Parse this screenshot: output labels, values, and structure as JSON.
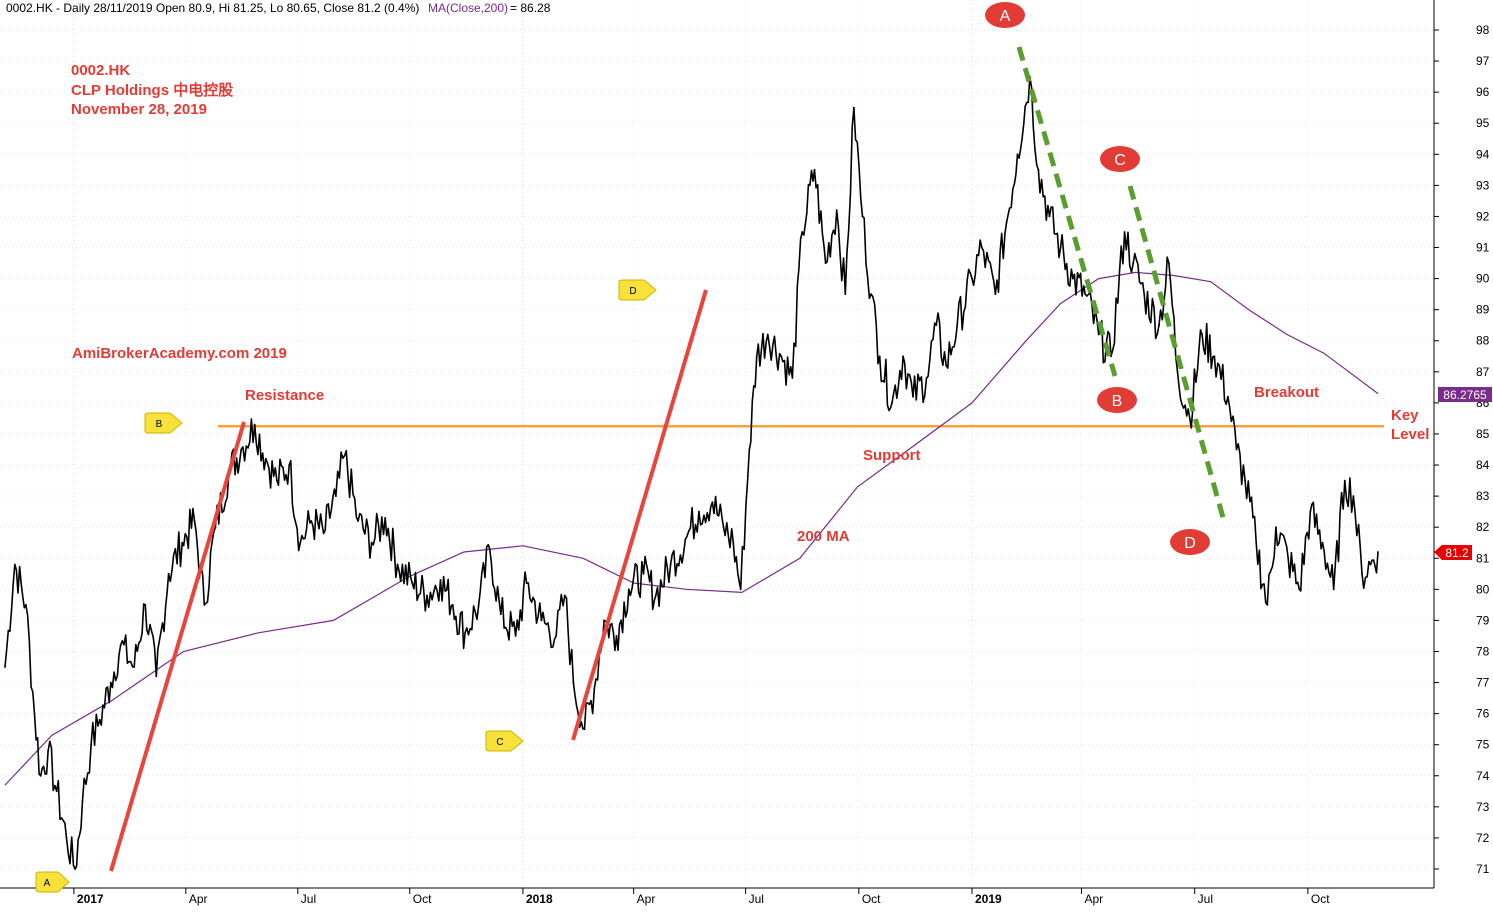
{
  "header": {
    "info": "0002.HK - Daily 28/11/2019 Open 80.9, Hi 81.25, Lo 80.65, Close 81.2 (0.4%)",
    "ma_label": "MA(Close,200)",
    "ma_value": " = 86.28"
  },
  "title_block": {
    "line1": "0002.HK",
    "line2": "CLP Holdings  中电控股",
    "line3": "November 28, 2019"
  },
  "watermark": "AmiBrokerAcademy.com   2019",
  "annotations": {
    "resistance": "Resistance",
    "support": "Support",
    "ma200": "200 MA",
    "breakout": "Breakout",
    "key": "Key",
    "level": "Level"
  },
  "markers": {
    "small_A": "A",
    "small_B": "B",
    "small_C": "C",
    "small_D": "D",
    "big_A": "A",
    "big_B": "B",
    "big_C": "C",
    "big_D": "D"
  },
  "price_tags": {
    "ma": "86.2765",
    "close": "81.2"
  },
  "colors": {
    "background": "#ffffff",
    "price": "#000000",
    "ma": "#7a2b8c",
    "key_level": "#f5a33a",
    "trend_up": "#e8453c",
    "trend_down": "#5a9e2f",
    "label_red": "#e23c36",
    "marker_yellow": "#f7e13a",
    "close_tag": "#e80000",
    "ma_tag": "#7a2b8c"
  },
  "chart_data": {
    "type": "line",
    "title": "0002.HK - Daily 28/11/2019 Open 80.9, Hi 81.25, Lo 80.65, Close 81.2 (0.4%)",
    "ylim": [
      70.5,
      98.5
    ],
    "y_ticks": [
      71,
      72,
      73,
      74,
      75,
      76,
      77,
      78,
      79,
      80,
      81,
      82,
      83,
      84,
      85,
      86,
      87,
      88,
      89,
      90,
      91,
      92,
      93,
      94,
      95,
      96,
      97,
      98
    ],
    "x_ticks": [
      "2017",
      "Apr",
      "Jul",
      "Oct",
      "2018",
      "Apr",
      "Jul",
      "Oct",
      "2019",
      "Apr",
      "Jul",
      "Oct"
    ],
    "x_start": "2016-11-07",
    "x_end": "2019-11-28",
    "key_level": 85.25,
    "series": [
      {
        "name": "0002.HK",
        "points": [
          [
            "2016-11-07",
            77.5
          ],
          [
            "2016-11-15",
            80.8
          ],
          [
            "2016-11-24",
            79.5
          ],
          [
            "2016-12-01",
            76.0
          ],
          [
            "2016-12-06",
            74.0
          ],
          [
            "2016-12-12",
            74.8
          ],
          [
            "2016-12-19",
            73.5
          ],
          [
            "2016-12-27",
            72.0
          ],
          [
            "2017-01-03",
            71.0
          ],
          [
            "2017-01-09",
            73.2
          ],
          [
            "2017-01-16",
            75.0
          ],
          [
            "2017-01-23",
            75.8
          ],
          [
            "2017-02-01",
            77.0
          ],
          [
            "2017-02-09",
            78.2
          ],
          [
            "2017-02-20",
            77.5
          ],
          [
            "2017-03-01",
            79.5
          ],
          [
            "2017-03-10",
            77.2
          ],
          [
            "2017-03-20",
            80.5
          ],
          [
            "2017-03-31",
            81.5
          ],
          [
            "2017-04-10",
            82.2
          ],
          [
            "2017-04-18",
            79.5
          ],
          [
            "2017-04-27",
            82.0
          ],
          [
            "2017-05-08",
            83.8
          ],
          [
            "2017-05-18",
            84.5
          ],
          [
            "2017-05-29",
            85.3
          ],
          [
            "2017-06-07",
            84.2
          ],
          [
            "2017-06-16",
            83.5
          ],
          [
            "2017-06-26",
            84.0
          ],
          [
            "2017-07-05",
            81.5
          ],
          [
            "2017-07-14",
            82.2
          ],
          [
            "2017-07-24",
            81.8
          ],
          [
            "2017-08-03",
            83.0
          ],
          [
            "2017-08-10",
            84.3
          ],
          [
            "2017-08-21",
            82.2
          ],
          [
            "2017-09-01",
            81.5
          ],
          [
            "2017-09-12",
            82.3
          ],
          [
            "2017-09-22",
            80.8
          ],
          [
            "2017-10-04",
            80.2
          ],
          [
            "2017-10-16",
            79.8
          ],
          [
            "2017-10-27",
            80.3
          ],
          [
            "2017-11-06",
            79.5
          ],
          [
            "2017-11-16",
            78.6
          ],
          [
            "2017-11-27",
            79.5
          ],
          [
            "2017-12-06",
            81.3
          ],
          [
            "2017-12-15",
            79.2
          ],
          [
            "2017-12-27",
            78.5
          ],
          [
            "2018-01-05",
            80.2
          ],
          [
            "2018-01-17",
            79.0
          ],
          [
            "2018-01-29",
            78.5
          ],
          [
            "2018-02-05",
            79.8
          ],
          [
            "2018-02-12",
            77.0
          ],
          [
            "2018-02-21",
            75.5
          ],
          [
            "2018-03-01",
            76.8
          ],
          [
            "2018-03-09",
            79.0
          ],
          [
            "2018-03-19",
            78.5
          ],
          [
            "2018-03-29",
            80.0
          ],
          [
            "2018-04-10",
            80.5
          ],
          [
            "2018-04-20",
            79.8
          ],
          [
            "2018-05-02",
            80.8
          ],
          [
            "2018-05-14",
            81.6
          ],
          [
            "2018-05-25",
            82.5
          ],
          [
            "2018-06-05",
            82.8
          ],
          [
            "2018-06-14",
            82.0
          ],
          [
            "2018-06-22",
            81.5
          ],
          [
            "2018-06-28",
            80.0
          ],
          [
            "2018-07-05",
            84.5
          ],
          [
            "2018-07-11",
            87.5
          ],
          [
            "2018-07-20",
            88.2
          ],
          [
            "2018-07-31",
            87.5
          ],
          [
            "2018-08-09",
            86.8
          ],
          [
            "2018-08-17",
            91.5
          ],
          [
            "2018-08-27",
            93.5
          ],
          [
            "2018-09-05",
            90.5
          ],
          [
            "2018-09-14",
            92.2
          ],
          [
            "2018-09-21",
            89.5
          ],
          [
            "2018-09-28",
            95.5
          ],
          [
            "2018-10-05",
            92.0
          ],
          [
            "2018-10-12",
            89.5
          ],
          [
            "2018-10-19",
            87.5
          ],
          [
            "2018-10-29",
            86.0
          ],
          [
            "2018-11-07",
            87.5
          ],
          [
            "2018-11-15",
            86.2
          ],
          [
            "2018-11-26",
            86.8
          ],
          [
            "2018-12-04",
            88.5
          ],
          [
            "2018-12-12",
            87.2
          ],
          [
            "2018-12-21",
            88.5
          ],
          [
            "2019-01-02",
            90.0
          ],
          [
            "2019-01-10",
            91.0
          ],
          [
            "2019-01-21",
            89.5
          ],
          [
            "2019-01-30",
            91.8
          ],
          [
            "2019-02-08",
            94.0
          ],
          [
            "2019-02-18",
            96.5
          ],
          [
            "2019-02-25",
            93.5
          ],
          [
            "2019-03-06",
            92.0
          ],
          [
            "2019-03-15",
            91.0
          ],
          [
            "2019-03-25",
            90.0
          ],
          [
            "2019-04-04",
            89.5
          ],
          [
            "2019-04-15",
            88.2
          ],
          [
            "2019-04-25",
            87.5
          ],
          [
            "2019-05-06",
            91.5
          ],
          [
            "2019-05-13",
            90.5
          ],
          [
            "2019-05-22",
            89.5
          ],
          [
            "2019-06-03",
            88.5
          ],
          [
            "2019-06-11",
            90.5
          ],
          [
            "2019-06-18",
            87.0
          ],
          [
            "2019-06-28",
            85.5
          ],
          [
            "2019-07-08",
            88.2
          ],
          [
            "2019-07-18",
            87.5
          ],
          [
            "2019-07-29",
            86.2
          ],
          [
            "2019-08-05",
            84.5
          ],
          [
            "2019-08-12",
            83.5
          ],
          [
            "2019-08-21",
            81.5
          ],
          [
            "2019-08-30",
            79.5
          ],
          [
            "2019-09-06",
            82.0
          ],
          [
            "2019-09-16",
            81.0
          ],
          [
            "2019-09-25",
            80.0
          ],
          [
            "2019-10-04",
            82.5
          ],
          [
            "2019-10-14",
            81.5
          ],
          [
            "2019-10-23",
            80.0
          ],
          [
            "2019-11-01",
            83.5
          ],
          [
            "2019-11-08",
            83.0
          ],
          [
            "2019-11-15",
            80.5
          ],
          [
            "2019-11-22",
            80.8
          ],
          [
            "2019-11-28",
            81.2
          ]
        ]
      },
      {
        "name": "MA(Close,200)",
        "points": [
          [
            "2016-11-07",
            73.7
          ],
          [
            "2016-12-15",
            75.3
          ],
          [
            "2017-02-01",
            76.4
          ],
          [
            "2017-04-01",
            78.0
          ],
          [
            "2017-06-01",
            78.6
          ],
          [
            "2017-08-01",
            79.0
          ],
          [
            "2017-10-01",
            80.4
          ],
          [
            "2017-11-15",
            81.2
          ],
          [
            "2018-01-02",
            81.4
          ],
          [
            "2018-02-20",
            81.0
          ],
          [
            "2018-04-02",
            80.2
          ],
          [
            "2018-05-15",
            80.0
          ],
          [
            "2018-06-29",
            79.9
          ],
          [
            "2018-08-15",
            81.0
          ],
          [
            "2018-10-01",
            83.3
          ],
          [
            "2018-11-15",
            84.6
          ],
          [
            "2019-01-02",
            86.0
          ],
          [
            "2019-02-15",
            88.0
          ],
          [
            "2019-03-15",
            89.2
          ],
          [
            "2019-04-15",
            90.0
          ],
          [
            "2019-05-15",
            90.2
          ],
          [
            "2019-06-15",
            90.1
          ],
          [
            "2019-07-15",
            89.9
          ],
          [
            "2019-08-15",
            89.0
          ],
          [
            "2019-09-15",
            88.2
          ],
          [
            "2019-10-15",
            87.6
          ],
          [
            "2019-11-28",
            86.3
          ]
        ]
      }
    ]
  }
}
